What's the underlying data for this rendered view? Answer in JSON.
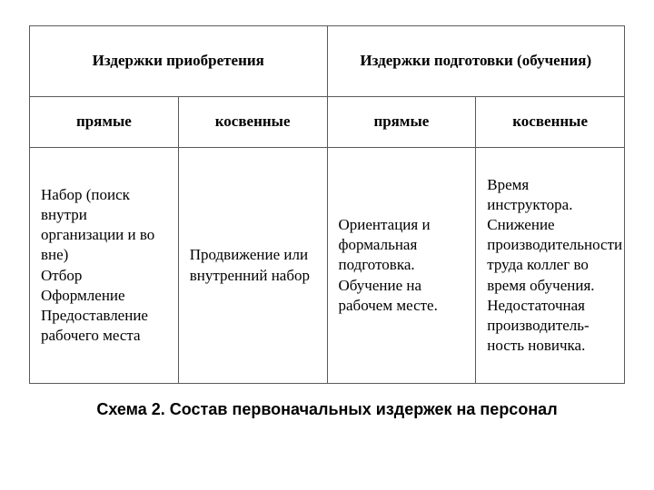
{
  "table": {
    "border_color": "#5a5a5a",
    "background_color": "#ffffff",
    "text_color": "#000000",
    "header_font_family": "Times New Roman",
    "header_fontsize": 17,
    "body_fontsize": 17,
    "columns": 4,
    "column_widths_pct": [
      25,
      25,
      25,
      25
    ],
    "top_headers": [
      {
        "label": "Издержки приобретения",
        "colspan": 2
      },
      {
        "label": "Издержки подготовки (обучения)",
        "colspan": 2
      }
    ],
    "sub_headers": [
      "прямые",
      "косвенные",
      "прямые",
      "косвенные"
    ],
    "body_row": [
      "Набор (поиск внутри организации и во вне)\nОтбор\nОформление\nПредоставление рабочего места",
      "Продвижение или внутренний набор",
      "Ориентация и формальная подготовка.\nОбучение на рабочем месте.",
      "Время инструктора.\nСнижение производительности труда коллег во время обучения.\nНедостаточная производитель-ность новичка."
    ]
  },
  "caption": "Схема 2. Состав первоначальных издержек на персонал",
  "caption_font_family": "Arial",
  "caption_fontsize": 18
}
